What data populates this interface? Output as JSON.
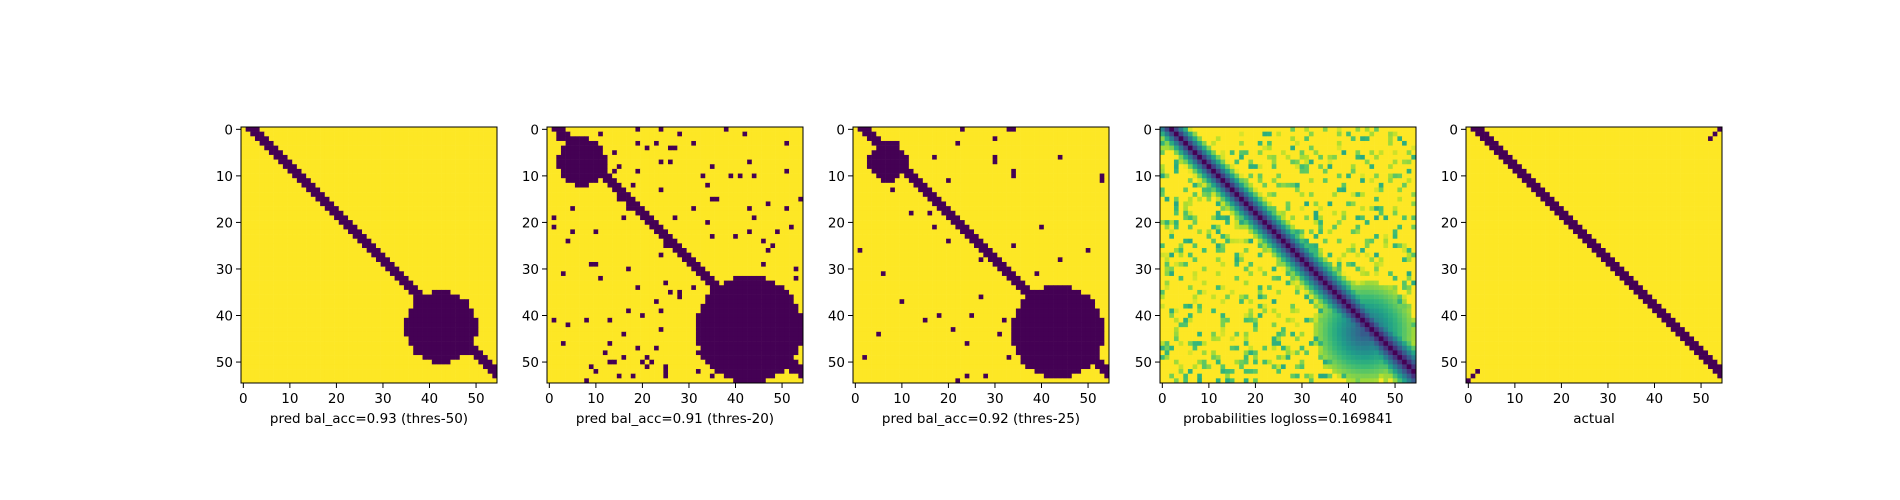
{
  "colors": {
    "background": "#ffffff",
    "colormap": "viridis",
    "low": "#440154",
    "high": "#fde725",
    "axes": "#000000"
  },
  "chart_data": [
    {
      "type": "heatmap",
      "label": "pred bal_acc=0.93 (thres-50)",
      "size": 55,
      "xlim": [
        0,
        54
      ],
      "ylim": [
        0,
        54
      ],
      "xticks": [
        0,
        10,
        20,
        30,
        40,
        50
      ],
      "yticks": [
        0,
        10,
        20,
        30,
        40,
        50
      ],
      "values_desc": "binary matrix",
      "model": {
        "diag_from": 0,
        "diag_to": 54,
        "halfwidth": [
          1,
          1.6
        ],
        "drift": 0.6,
        "blocks": [
          {
            "r0": 35,
            "r1": 50,
            "c0": 35,
            "c1": 50,
            "value": 0
          }
        ],
        "noise": 0.0,
        "seed": 1
      }
    },
    {
      "type": "heatmap",
      "label": "pred bal_acc=0.91 (thres-20)",
      "size": 55,
      "xlim": [
        0,
        54
      ],
      "ylim": [
        0,
        54
      ],
      "xticks": [
        0,
        10,
        20,
        30,
        40,
        50
      ],
      "yticks": [
        0,
        10,
        20,
        30,
        40,
        50
      ],
      "values_desc": "binary matrix",
      "model": {
        "diag_from": 0,
        "diag_to": 54,
        "halfwidth": [
          1.2,
          2.0
        ],
        "drift": 0.6,
        "blocks": [
          {
            "r0": 32,
            "r1": 54,
            "c0": 32,
            "c1": 54,
            "value": 0
          },
          {
            "r0": 2,
            "r1": 12,
            "c0": 2,
            "c1": 12,
            "value": 0
          }
        ],
        "noise": 0.04,
        "seed": 2
      }
    },
    {
      "type": "heatmap",
      "label": "pred bal_acc=0.92 (thres-25)",
      "size": 55,
      "xlim": [
        0,
        54
      ],
      "ylim": [
        0,
        54
      ],
      "xticks": [
        0,
        10,
        20,
        30,
        40,
        50
      ],
      "yticks": [
        0,
        10,
        20,
        30,
        40,
        50
      ],
      "values_desc": "binary matrix",
      "model": {
        "diag_from": 0,
        "diag_to": 54,
        "halfwidth": [
          1.1,
          1.8
        ],
        "drift": 0.6,
        "blocks": [
          {
            "r0": 34,
            "r1": 53,
            "c0": 34,
            "c1": 53,
            "value": 0
          },
          {
            "r0": 3,
            "r1": 11,
            "c0": 3,
            "c1": 11,
            "value": 0
          }
        ],
        "noise": 0.015,
        "seed": 3
      }
    },
    {
      "type": "heatmap",
      "label": "probabilities logloss=0.169841",
      "size": 55,
      "xlim": [
        0,
        54
      ],
      "ylim": [
        0,
        54
      ],
      "xticks": [
        0,
        10,
        20,
        30,
        40,
        50
      ],
      "yticks": [
        0,
        10,
        20,
        30,
        40,
        50
      ],
      "values_desc": "continuous probabilities 0..1",
      "model": {
        "diag_from": 0,
        "diag_to": 54,
        "halfwidth": [
          1.6,
          2.4
        ],
        "drift": 0.6,
        "blocks": [
          {
            "r0": 33,
            "r1": 54,
            "c0": 33,
            "c1": 54,
            "value": 0.25
          }
        ],
        "noise": 0.25,
        "seed": 4,
        "continuous": true
      }
    },
    {
      "type": "heatmap",
      "label": "actual",
      "size": 55,
      "xlim": [
        0,
        54
      ],
      "ylim": [
        0,
        54
      ],
      "xticks": [
        0,
        10,
        20,
        30,
        40,
        50
      ],
      "yticks": [
        0,
        10,
        20,
        30,
        40,
        50
      ],
      "values_desc": "binary matrix",
      "model": {
        "diag_from": 0,
        "diag_to": 54,
        "halfwidth": [
          1.2,
          1.2
        ],
        "drift": 0.6,
        "blocks": [],
        "noise": 0.0,
        "seed": 5,
        "corners": true
      }
    }
  ]
}
